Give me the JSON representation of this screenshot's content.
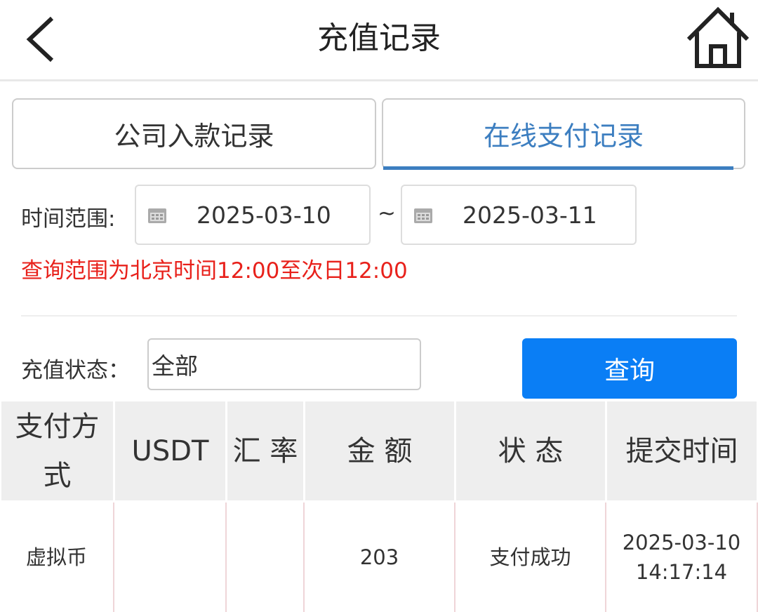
{
  "header": {
    "title": "充值记录",
    "back_icon": "chevron-left-icon",
    "home_icon": "home-icon"
  },
  "tabs": [
    {
      "label": "公司入款记录",
      "active": false
    },
    {
      "label": "在线支付记录",
      "active": true
    }
  ],
  "accent_color": "#3c7ec0",
  "filters": {
    "time_label": "时间范围:",
    "start_date": "2025-03-10",
    "separator": "~",
    "end_date": "2025-03-11",
    "hint": "查询范围为北京时间12:00至次日12:00",
    "status_label": "充值状态：",
    "status_value": "全部",
    "query_button": "查询"
  },
  "table": {
    "headers": [
      "支付方式",
      "USDT",
      "汇 率",
      "金 额",
      "状 态",
      "提交时间"
    ],
    "rows": [
      {
        "method": "虚拟币",
        "usdt": "",
        "rate": "",
        "amount": "203",
        "status": "支付成功",
        "date": "2025-03-10",
        "time": "14:17:14"
      }
    ]
  }
}
